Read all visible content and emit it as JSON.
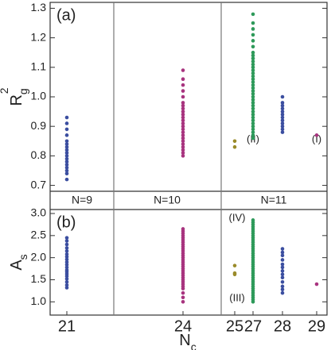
{
  "chart_data": [
    {
      "type": "scatter",
      "panel_label": "(a)",
      "ylabel": "R",
      "ylabel_sub": "g",
      "ylabel_sup": "2",
      "ylim": [
        0.68,
        1.32
      ],
      "yticks": [
        0.7,
        0.8,
        0.9,
        {
          "value": 1,
          "label": "1.0"
        },
        1.1,
        1.2,
        1.3
      ],
      "groups": [
        {
          "color": "#3b4ea0",
          "values": [
            0.72,
            0.74,
            0.75,
            0.76,
            0.77,
            0.78,
            0.79,
            0.8,
            0.81,
            0.82,
            0.83,
            0.84,
            0.85,
            0.87,
            0.89,
            0.91,
            0.93
          ]
        },
        {
          "color": "#a8347f",
          "values": [
            0.8,
            0.81,
            0.82,
            0.83,
            0.84,
            0.85,
            0.86,
            0.87,
            0.88,
            0.89,
            0.9,
            0.91,
            0.92,
            0.93,
            0.94,
            0.95,
            0.96,
            0.97,
            0.98,
            1.0,
            1.02,
            1.04,
            1.06,
            1.09
          ]
        },
        {
          "color": "#9a8b2a",
          "values": [
            0.83,
            0.85
          ]
        },
        {
          "color": "#2e9a5a",
          "values": [
            0.86,
            0.87,
            0.88,
            0.89,
            0.9,
            0.91,
            0.92,
            0.93,
            0.94,
            0.95,
            0.96,
            0.97,
            0.98,
            0.99,
            1.0,
            1.01,
            1.02,
            1.03,
            1.04,
            1.05,
            1.06,
            1.07,
            1.08,
            1.09,
            1.1,
            1.11,
            1.12,
            1.13,
            1.14,
            1.15,
            1.17,
            1.19,
            1.21,
            1.23,
            1.25,
            1.28
          ]
        },
        {
          "color": "#3b4ea0",
          "values": [
            0.88,
            0.89,
            0.9,
            0.91,
            0.92,
            0.93,
            0.94,
            0.95,
            0.96,
            0.97,
            0.98,
            1.0
          ]
        },
        {
          "color": "#a8347f",
          "values": [
            0.87
          ]
        }
      ],
      "annotations": [
        "(II)",
        "(I)"
      ],
      "group_labels": [
        "N=9",
        "N=10",
        "N=11"
      ]
    },
    {
      "type": "scatter",
      "panel_label": "(b)",
      "ylabel": "A",
      "ylabel_sub": "s",
      "xlabel": "N",
      "xlabel_sub": "c",
      "categories": [
        "21",
        "24",
        "25",
        "27",
        "28",
        "29"
      ],
      "ylim": [
        0.7,
        3.09
      ],
      "yticks": [
        {
          "value": 1,
          "label": "1.0"
        },
        1.5,
        {
          "value": 2,
          "label": "2.0"
        },
        2.5,
        {
          "value": 3,
          "label": "3.0"
        }
      ],
      "groups": [
        {
          "color": "#3b4ea0",
          "values": [
            1.32,
            1.38,
            1.45,
            1.52,
            1.58,
            1.63,
            1.68,
            1.72,
            1.78,
            1.84,
            1.9,
            1.96,
            2.02,
            2.08,
            2.15,
            2.22,
            2.3,
            2.38,
            2.45
          ]
        },
        {
          "color": "#a8347f",
          "values": [
            1.0,
            1.1,
            1.2,
            1.3,
            1.35,
            1.4,
            1.45,
            1.5,
            1.55,
            1.6,
            1.65,
            1.7,
            1.75,
            1.8,
            1.85,
            1.9,
            1.95,
            2.0,
            2.05,
            2.1,
            2.15,
            2.2,
            2.25,
            2.3,
            2.35,
            2.4,
            2.45,
            2.5,
            2.55,
            2.6,
            2.65
          ]
        },
        {
          "color": "#9a8b2a",
          "values": [
            1.62,
            1.65,
            1.82
          ]
        },
        {
          "color": "#2e9a5a",
          "values": [
            1.0,
            1.05,
            1.1,
            1.15,
            1.2,
            1.25,
            1.3,
            1.35,
            1.4,
            1.45,
            1.5,
            1.55,
            1.6,
            1.65,
            1.7,
            1.75,
            1.8,
            1.85,
            1.9,
            1.95,
            2.0,
            2.05,
            2.1,
            2.15,
            2.2,
            2.25,
            2.3,
            2.35,
            2.4,
            2.45,
            2.5,
            2.55,
            2.6,
            2.65,
            2.7,
            2.75,
            2.8,
            2.85
          ]
        },
        {
          "color": "#3b4ea0",
          "values": [
            1.2,
            1.28,
            1.35,
            1.45,
            1.55,
            1.62,
            1.7,
            1.78,
            1.85,
            1.95,
            2.05,
            2.12,
            2.2
          ]
        },
        {
          "color": "#a8347f",
          "values": [
            1.4
          ]
        }
      ],
      "annotations": [
        "(IV)",
        "(III)"
      ]
    }
  ]
}
